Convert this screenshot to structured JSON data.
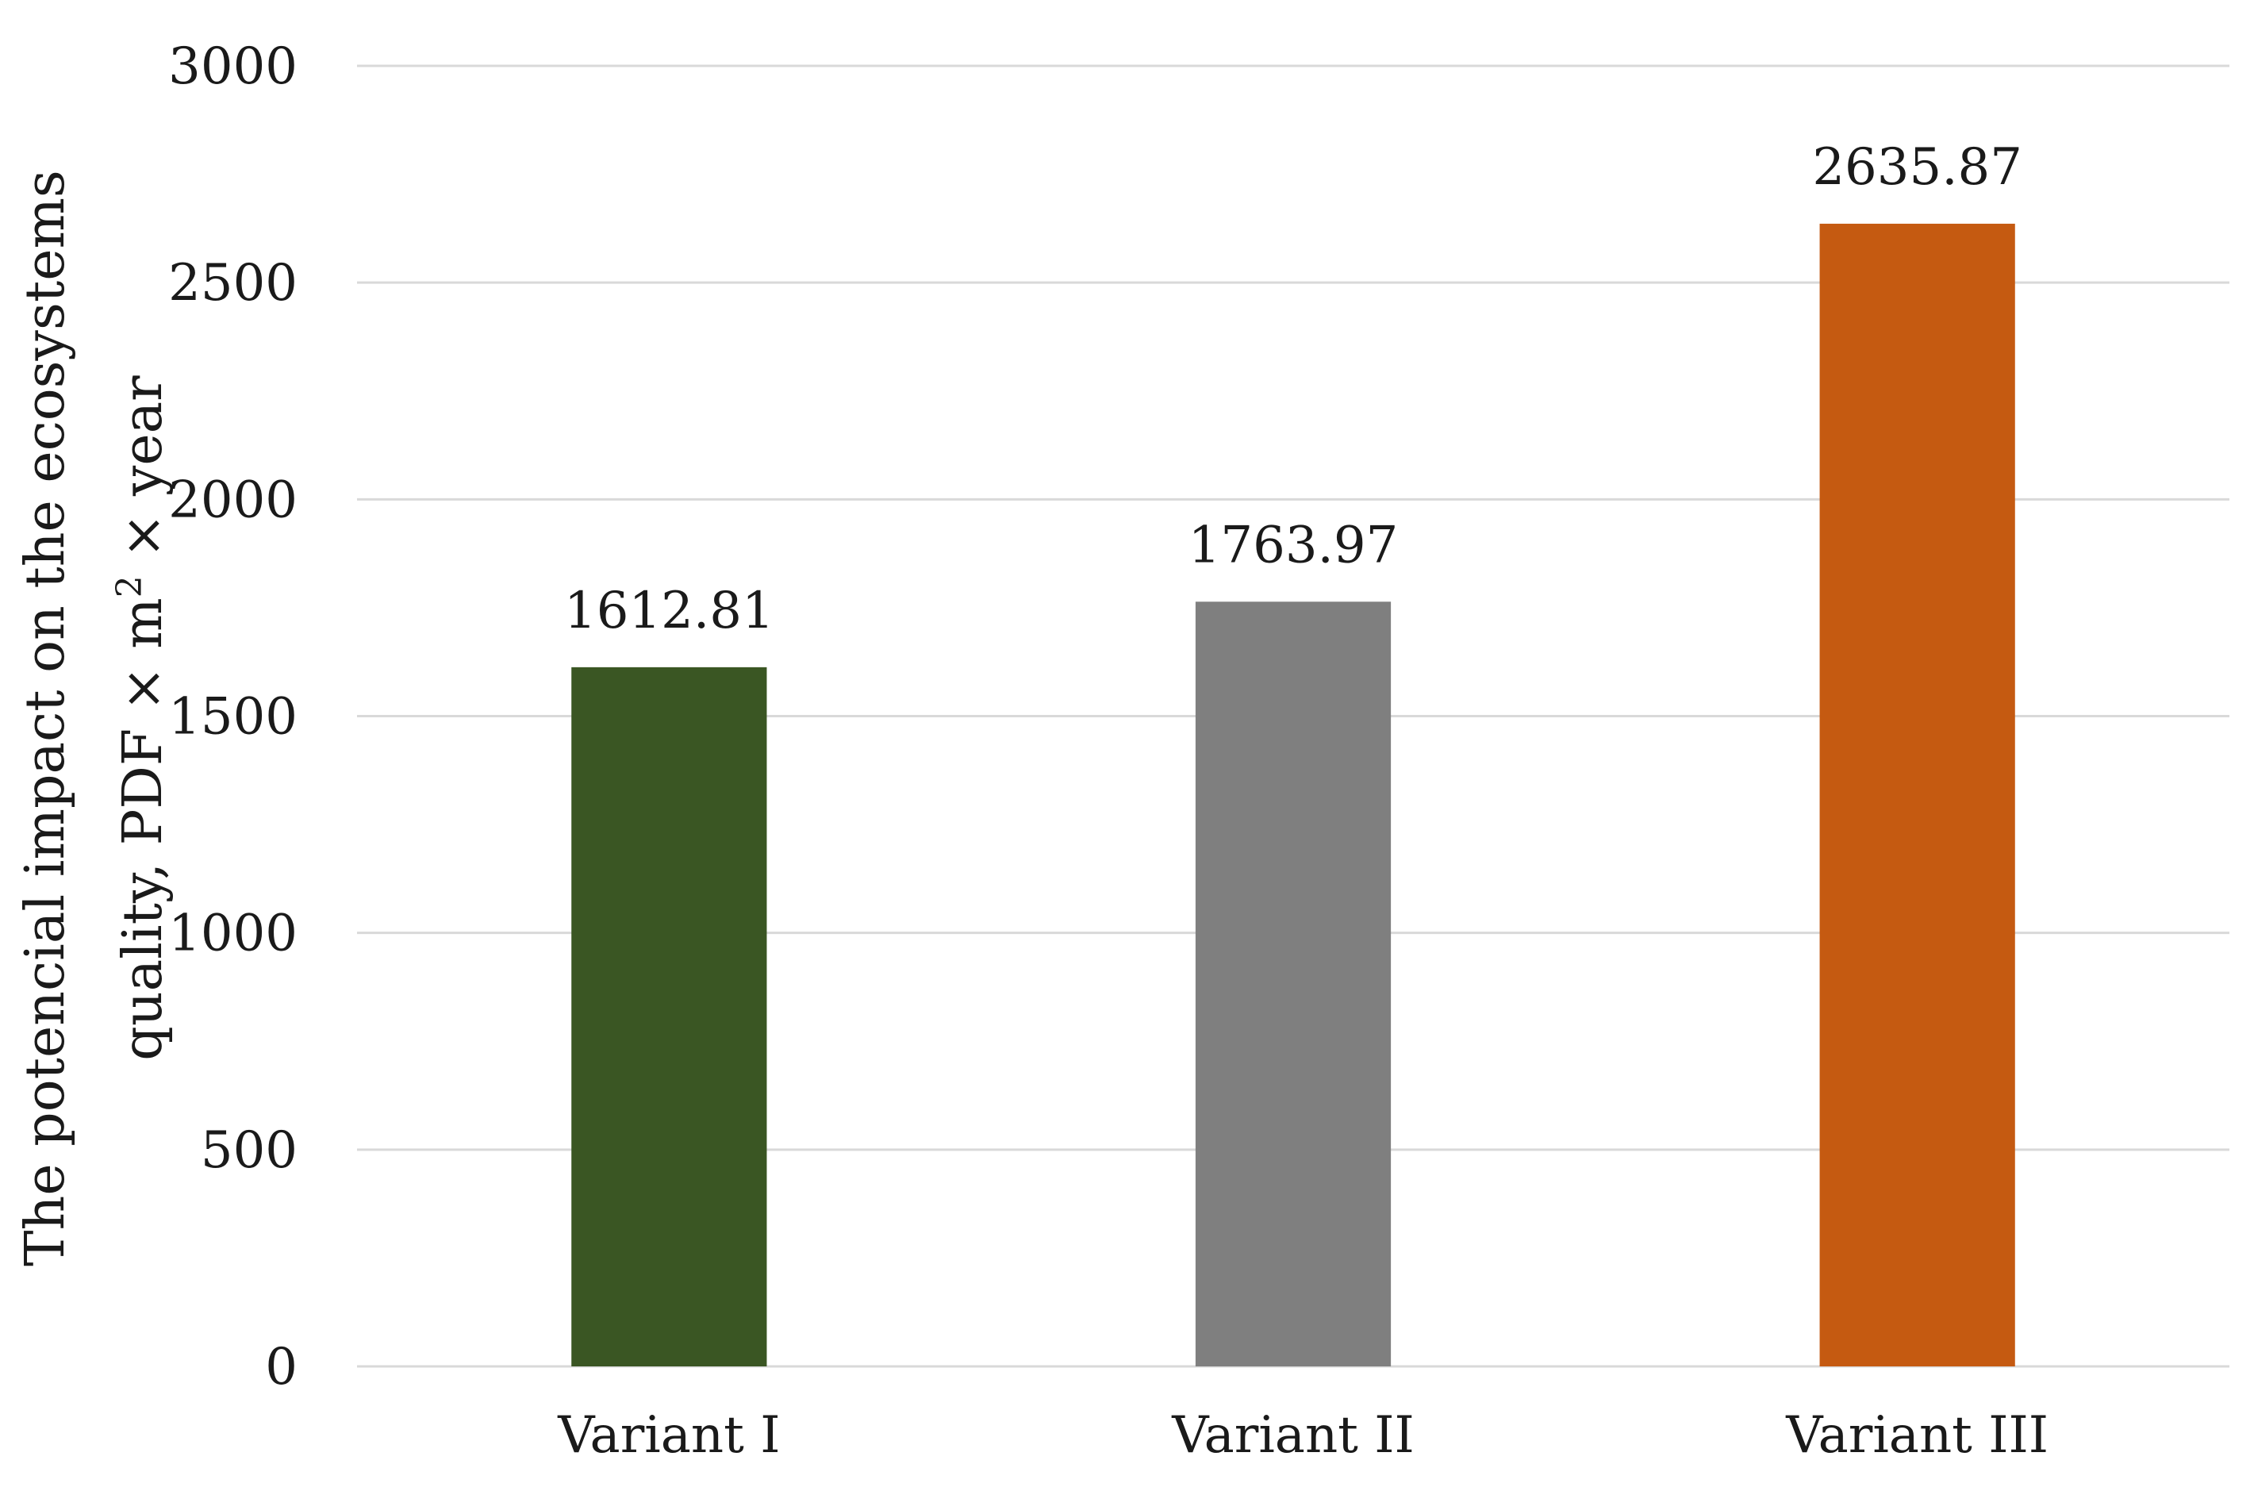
{
  "chart_data": {
    "type": "bar",
    "categories": [
      "Variant I",
      "Variant II",
      "Variant III"
    ],
    "values": [
      1612.81,
      1763.97,
      2635.87
    ],
    "data_labels": [
      "1612.81",
      "1763.97",
      "2635.87"
    ],
    "colors": [
      "#3a5623",
      "#7f7f7f",
      "#c55a11"
    ],
    "title": "",
    "xlabel": "",
    "ylabel_line1": "The potencial impact on the ecosystems",
    "ylabel_line2_prefix": "quality, PDF × m",
    "ylabel_line2_sup": "2",
    "ylabel_line2_suffix": " × year",
    "ylim": [
      0,
      3000
    ],
    "yticks": [
      "0",
      "500",
      "1000",
      "1500",
      "2000",
      "2500",
      "3000"
    ],
    "grid": true,
    "legend": "none"
  }
}
